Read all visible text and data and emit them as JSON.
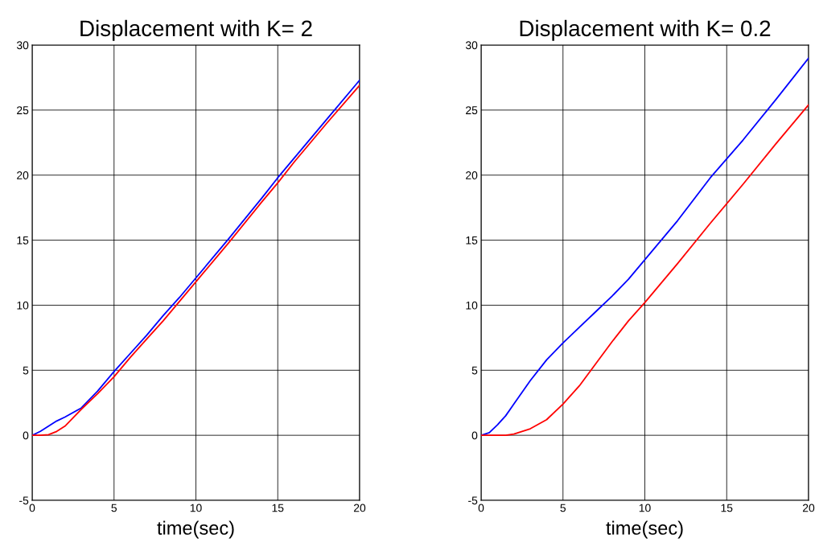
{
  "chart_data": [
    {
      "type": "line",
      "title": "Displacement with K= 2",
      "xlabel": "time(sec)",
      "xlim": [
        0,
        20
      ],
      "xticks": [
        0,
        5,
        10,
        15,
        20
      ],
      "ylim": [
        -5,
        30
      ],
      "yticks": [
        -5,
        0,
        5,
        10,
        15,
        20,
        25,
        30
      ],
      "grid": true,
      "series": [
        {
          "color": "#0000ff",
          "x": [
            0,
            0.5,
            1,
            1.5,
            2,
            3,
            4,
            5,
            6,
            7,
            8,
            9,
            10,
            12,
            14,
            15,
            16,
            18,
            20
          ],
          "values": [
            0,
            0.3,
            0.7,
            1.1,
            1.4,
            2.1,
            3.4,
            4.9,
            6.3,
            7.7,
            9.2,
            10.6,
            12.1,
            15.1,
            18.2,
            19.8,
            21.3,
            24.3,
            27.3
          ]
        },
        {
          "color": "#ff0000",
          "x": [
            0,
            0.5,
            1,
            1.5,
            2,
            3,
            4,
            5,
            6,
            7,
            8,
            9,
            10,
            12,
            14,
            15,
            16,
            18,
            20
          ],
          "values": [
            0,
            0,
            0.05,
            0.3,
            0.7,
            2.0,
            3.2,
            4.5,
            6.0,
            7.4,
            8.8,
            10.3,
            11.8,
            14.8,
            17.9,
            19.4,
            21.0,
            24.0,
            26.9
          ]
        }
      ]
    },
    {
      "type": "line",
      "title": "Displacement with K= 0.2",
      "xlabel": "time(sec)",
      "xlim": [
        0,
        20
      ],
      "xticks": [
        0,
        5,
        10,
        15,
        20
      ],
      "ylim": [
        -5,
        30
      ],
      "yticks": [
        -5,
        0,
        5,
        10,
        15,
        20,
        25,
        30
      ],
      "grid": true,
      "series": [
        {
          "color": "#0000ff",
          "x": [
            0,
            0.5,
            1,
            1.5,
            2,
            3,
            4,
            5,
            6,
            7,
            8,
            9,
            10,
            11,
            12,
            14,
            16,
            18,
            20
          ],
          "values": [
            0,
            0.2,
            0.8,
            1.5,
            2.4,
            4.2,
            5.8,
            7.1,
            8.3,
            9.5,
            10.7,
            12.0,
            13.5,
            15.0,
            16.5,
            19.8,
            22.7,
            25.8,
            29.0
          ]
        },
        {
          "color": "#ff0000",
          "x": [
            0,
            1,
            1.5,
            2,
            3,
            4,
            5,
            6,
            7,
            8,
            9,
            10,
            11,
            12,
            14,
            16,
            18,
            20
          ],
          "values": [
            0,
            0,
            0,
            0.1,
            0.5,
            1.2,
            2.4,
            3.8,
            5.5,
            7.2,
            8.8,
            10.2,
            11.7,
            13.2,
            16.3,
            19.3,
            22.4,
            25.4
          ]
        }
      ]
    }
  ]
}
